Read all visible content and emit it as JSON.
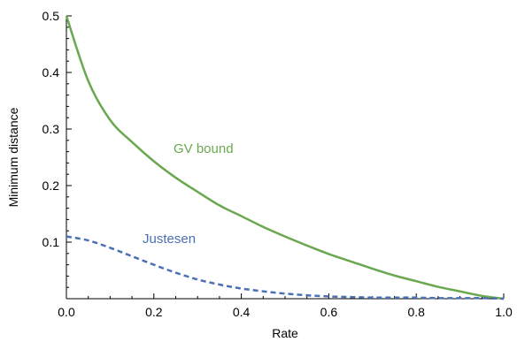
{
  "chart_data": {
    "type": "line",
    "xlabel": "Rate",
    "ylabel": "Minimum distance",
    "xlim": [
      0,
      1
    ],
    "ylim": [
      0,
      0.5
    ],
    "x_ticks": [
      "0.0",
      "0.2",
      "0.4",
      "0.6",
      "0.8",
      "1.0"
    ],
    "y_ticks": [
      "0.1",
      "0.2",
      "0.3",
      "0.4",
      "0.5"
    ],
    "grid": false,
    "legend": "none",
    "annotations": [
      {
        "text": "GV bound",
        "color": "#6aa84f"
      },
      {
        "text": "Justesen",
        "color": "#4a6fb5"
      }
    ],
    "series": [
      {
        "name": "GV bound",
        "color": "#6aa84f",
        "style": "solid",
        "x": [
          0,
          0.05,
          0.1,
          0.15,
          0.2,
          0.25,
          0.3,
          0.35,
          0.4,
          0.45,
          0.5,
          0.55,
          0.6,
          0.65,
          0.7,
          0.75,
          0.8,
          0.85,
          0.9,
          0.95,
          1.0
        ],
        "values": [
          0.5,
          0.385,
          0.316,
          0.277,
          0.243,
          0.214,
          0.189,
          0.165,
          0.146,
          0.127,
          0.11,
          0.094,
          0.079,
          0.066,
          0.053,
          0.041,
          0.031,
          0.021,
          0.013,
          0.005,
          0.0
        ]
      },
      {
        "name": "Justesen",
        "color": "#4a6fb5",
        "style": "dashed",
        "x": [
          0,
          0.05,
          0.1,
          0.15,
          0.2,
          0.25,
          0.3,
          0.35,
          0.4,
          0.45,
          0.5,
          0.55,
          0.6,
          0.65,
          0.7,
          0.75,
          0.8,
          0.85,
          0.9,
          0.95,
          1.0
        ],
        "values": [
          0.11,
          0.103,
          0.09,
          0.075,
          0.06,
          0.046,
          0.034,
          0.025,
          0.018,
          0.013,
          0.009,
          0.006,
          0.004,
          0.003,
          0.002,
          0.002,
          0.002,
          0.001,
          0.001,
          0.001,
          0.0
        ]
      }
    ]
  }
}
